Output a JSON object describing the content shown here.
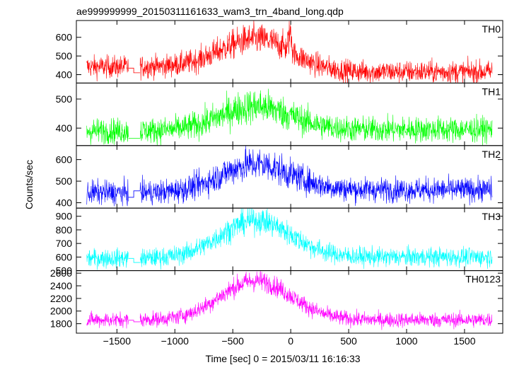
{
  "chart_data": {
    "type": "line",
    "title": "ae999999999_20150311161633_wam3_trn_4band_long.qdp",
    "xlabel": "Time [sec] 0 = 2015/03/11 16:16:33",
    "ylabel": "Counts/sec",
    "xlim": [
      -1850,
      1830
    ],
    "x_ticks": [
      -1500,
      -1000,
      -500,
      0,
      500,
      1000,
      1500
    ],
    "x_tick_labels": [
      "−1500",
      "−1000",
      "−500",
      "0",
      "500",
      "1000",
      "1500"
    ],
    "gap": {
      "start": -1380,
      "end": -1310
    },
    "panels": [
      {
        "name": "TH0",
        "color": "#ff0000",
        "ylim": [
          355,
          690
        ],
        "ticks": [
          400,
          500,
          600
        ],
        "baseline_left": 445,
        "baseline_right": 415,
        "peak": 590,
        "noise": 30,
        "gap_levels": [
          435,
          410
        ]
      },
      {
        "name": "TH1",
        "color": "#00ff00",
        "ylim": [
          340,
          555
        ],
        "ticks": [
          400,
          500
        ],
        "baseline_left": 390,
        "baseline_right": 395,
        "peak": 475,
        "noise": 22,
        "gap_levels": [
          365,
          365
        ]
      },
      {
        "name": "TH2",
        "color": "#0000ff",
        "ylim": [
          375,
          665
        ],
        "ticks": [
          400,
          500,
          600
        ],
        "baseline_left": 445,
        "baseline_right": 460,
        "peak": 580,
        "noise": 28,
        "gap_levels": [
          425,
          455
        ]
      },
      {
        "name": "TH3",
        "color": "#00ffff",
        "ylim": [
          500,
          960
        ],
        "ticks": [
          500,
          600,
          700,
          800,
          900
        ],
        "baseline_left": 590,
        "baseline_right": 600,
        "peak": 870,
        "noise": 35,
        "gap_levels": [
          590,
          560
        ]
      },
      {
        "name": "TH0123",
        "color": "#ff00ff",
        "ylim": [
          1650,
          2640
        ],
        "ticks": [
          1800,
          2000,
          2200,
          2400,
          2600
        ],
        "baseline_left": 1860,
        "baseline_right": 1860,
        "peak": 2480,
        "noise": 60,
        "gap_levels": [
          1855,
          1830
        ]
      }
    ]
  }
}
